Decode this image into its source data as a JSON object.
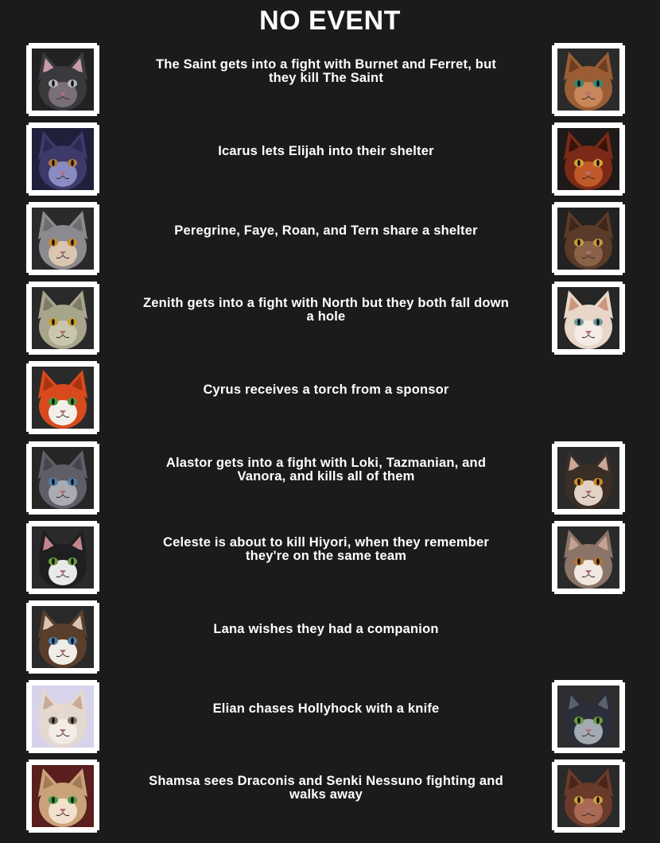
{
  "title": "NO EVENT",
  "events": [
    {
      "text": "The Saint gets into a fight with Burnet and Ferret, but they kill The Saint",
      "left": {
        "name": "the-saint-portrait",
        "fur": "#3a3a3e",
        "face": "#7a6f78",
        "ears": "#c69aa6",
        "eyes": "#b8b8c0",
        "bg": "#222222"
      },
      "right": {
        "name": "burnet-portrait",
        "fur": "#9b5e34",
        "face": "#c8875a",
        "ears": "#6e3f22",
        "eyes": "#2f8a7a",
        "bg": "#2b2b2b"
      }
    },
    {
      "text": "Icarus lets Elijah into their shelter",
      "left": {
        "name": "icarus-portrait",
        "fur": "#3d3a6b",
        "face": "#8a8bc2",
        "ears": "#2c2a52",
        "eyes": "#b57a3a",
        "bg": "#20203a"
      },
      "right": {
        "name": "elijah-portrait",
        "fur": "#7a2a16",
        "face": "#c05a2a",
        "ears": "#3a1208",
        "eyes": "#d9a23a",
        "bg": "#1e1a1a"
      }
    },
    {
      "text": "Peregrine, Faye, Roan, and Tern share a shelter",
      "left": {
        "name": "peregrine-portrait",
        "fur": "#8c8a8e",
        "face": "#d8c6b0",
        "ears": "#6e6c70",
        "eyes": "#d08a2a",
        "bg": "#2a2a2a"
      },
      "right": {
        "name": "tern-portrait",
        "fur": "#5a3a28",
        "face": "#8a6248",
        "ears": "#3e2618",
        "eyes": "#c89a3a",
        "bg": "#222222"
      }
    },
    {
      "text": "Zenith gets into a fight with North but they both fall down a hole",
      "left": {
        "name": "zenith-portrait",
        "fur": "#a7a58c",
        "face": "#c9c6ae",
        "ears": "#7e7c68",
        "eyes": "#c8a22a",
        "bg": "#2a2a2a"
      },
      "right": {
        "name": "north-portrait",
        "fur": "#e8d6c8",
        "face": "#f4ece4",
        "ears": "#c9967e",
        "eyes": "#6f9aa0",
        "bg": "#262626"
      }
    },
    {
      "text": "Cyrus receives a torch from a sponsor",
      "left": {
        "name": "cyrus-portrait",
        "fur": "#d84a1e",
        "face": "#f2efe9",
        "ears": "#a8330f",
        "eyes": "#4a9a3a",
        "bg": "#2a2a2a"
      },
      "right": null
    },
    {
      "text": "Alastor gets into a fight with Loki, Tazmanian, and Vanora, and kills all of them",
      "left": {
        "name": "alastor-portrait",
        "fur": "#5e5f66",
        "face": "#a9aab2",
        "ears": "#45464c",
        "eyes": "#4f7fb0",
        "bg": "#262626"
      },
      "right": {
        "name": "loki-portrait",
        "fur": "#3a2e26",
        "face": "#e2d2c6",
        "ears": "#c9a696",
        "eyes": "#d08a2a",
        "bg": "#2a2a2a"
      }
    },
    {
      "text": "Celeste is about to kill Hiyori, when they remember they're on the same team",
      "left": {
        "name": "celeste-portrait",
        "fur": "#1f1f22",
        "face": "#e9e9ec",
        "ears": "#c4848c",
        "eyes": "#6aa03a",
        "bg": "#2a2a2a"
      },
      "right": {
        "name": "hiyori-portrait",
        "fur": "#8a7468",
        "face": "#f1e8e2",
        "ears": "#c4a290",
        "eyes": "#b8762a",
        "bg": "#2a2a2a"
      }
    },
    {
      "text": "Lana wishes they had a companion",
      "left": {
        "name": "lana-portrait",
        "fur": "#5a3e2c",
        "face": "#f0ece6",
        "ears": "#d8c6b4",
        "eyes": "#4f7fb0",
        "bg": "#2a2a2a"
      },
      "right": null
    },
    {
      "text": "Elian chases Hollyhock with a knife",
      "left": {
        "name": "elian-portrait",
        "fur": "#e5d8cf",
        "face": "#f3ebe5",
        "ears": "#c8aa98",
        "eyes": "#8a7a6a",
        "bg": "#d6d3ea"
      },
      "right": {
        "name": "hollyhock-portrait",
        "fur": "#2a2e3a",
        "face": "#a4aab2",
        "ears": "#5a606c",
        "eyes": "#6a9a3a",
        "bg": "#2e2e2e"
      }
    },
    {
      "text": "Shamsa sees Draconis and Senki Nessuno fighting and walks away",
      "left": {
        "name": "shamsa-portrait",
        "fur": "#caa27a",
        "face": "#f0e0cc",
        "ears": "#a27a58",
        "eyes": "#4aa04a",
        "bg": "#5a1e1e"
      },
      "right": {
        "name": "draconis-portrait",
        "fur": "#6a3a2a",
        "face": "#a86a52",
        "ears": "#4a2418",
        "eyes": "#d0a03a",
        "bg": "#2a2a2a"
      }
    }
  ]
}
